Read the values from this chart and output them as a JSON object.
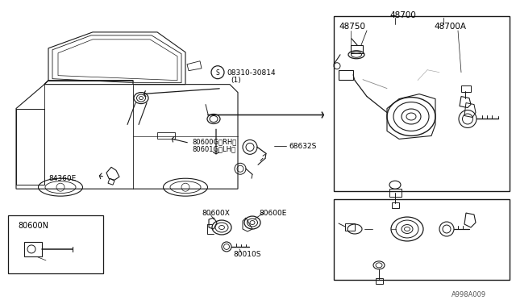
{
  "bg_color": "#ffffff",
  "line_color": "#1a1a1a",
  "text_color": "#000000",
  "labels": {
    "s_circle": "S",
    "s_label": "08310-30814",
    "s_sub": "(1)",
    "label_68632S": "68632S",
    "label_84360E": "84360E",
    "label_80600G": "80600G〈RH〉",
    "label_80601G": "80601G〈LH〉",
    "label_80600X": "80600X",
    "label_80600E": "80600E",
    "label_80010S": "80010S",
    "label_80600N": "80600N",
    "label_48700": "48700",
    "label_48750": "48750",
    "label_48700A": "48700A",
    "watermark": "A998A009"
  },
  "fs": 6.5,
  "fn": 7.5
}
